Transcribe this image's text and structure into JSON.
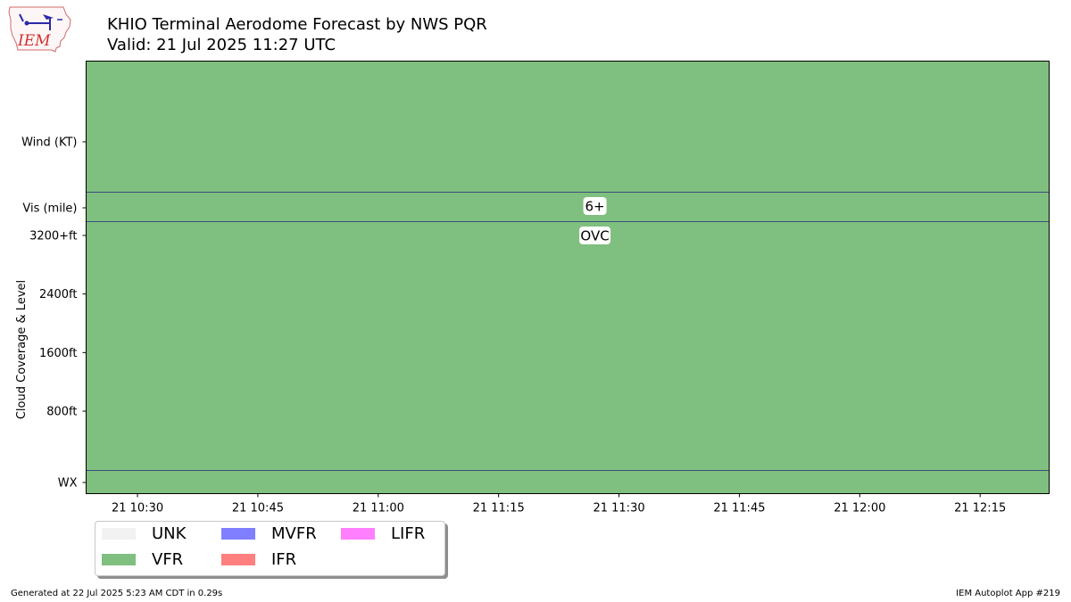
{
  "header": {
    "logo_text": "IEM",
    "title_line1": "KHIO Terminal Aerodome Forecast by NWS PQR",
    "title_line2": "Valid: 21 Jul 2025 11:27 UTC"
  },
  "footer": {
    "left": "Generated at 22 Jul 2025 5:23 AM CDT in 0.29s",
    "right": "IEM Autoplot App #219"
  },
  "chart_data": {
    "type": "heatmap",
    "title": "KHIO Terminal Aerodome Forecast by NWS PQR",
    "subtitle": "Valid: 21 Jul 2025 11:27 UTC",
    "xlabel": "",
    "ylabel": "Cloud Coverage & Level",
    "x_ticks": [
      "21 10:30",
      "21 10:45",
      "21 11:00",
      "21 11:15",
      "21 11:30",
      "21 11:45",
      "21 12:00",
      "21 12:15"
    ],
    "xlim_minutes": [
      10.5,
      13.0
    ],
    "y_rows": [
      "Wind (KT)",
      "Vis (mile)",
      "Cloud Coverage & Level",
      "WX"
    ],
    "y_ticks_cloud": [
      "3200+ft",
      "2400ft",
      "1600ft",
      "800ft"
    ],
    "y_ticks_cloud_values": [
      3200,
      2400,
      1600,
      800
    ],
    "cloud_ylim": [
      -800,
      3200
    ],
    "background_category": "VFR",
    "forecast": [
      {
        "time": "21 11:27",
        "category": "VFR",
        "visibility": "6+",
        "cloud": "OVC",
        "cloud_level_ft": 3200
      }
    ],
    "legend": [
      {
        "label": "UNK",
        "color": "#f2f2f2"
      },
      {
        "label": "VFR",
        "color": "#7fbf7f"
      },
      {
        "label": "MVFR",
        "color": "#7f7fff"
      },
      {
        "label": "IFR",
        "color": "#ff7f7f"
      },
      {
        "label": "LIFR",
        "color": "#ff7fff"
      }
    ],
    "legend_placement": "bottom-left",
    "colors": {
      "vfr": "#7fbf7f",
      "divider": "#3b4f7c",
      "frame": "#000000"
    }
  }
}
